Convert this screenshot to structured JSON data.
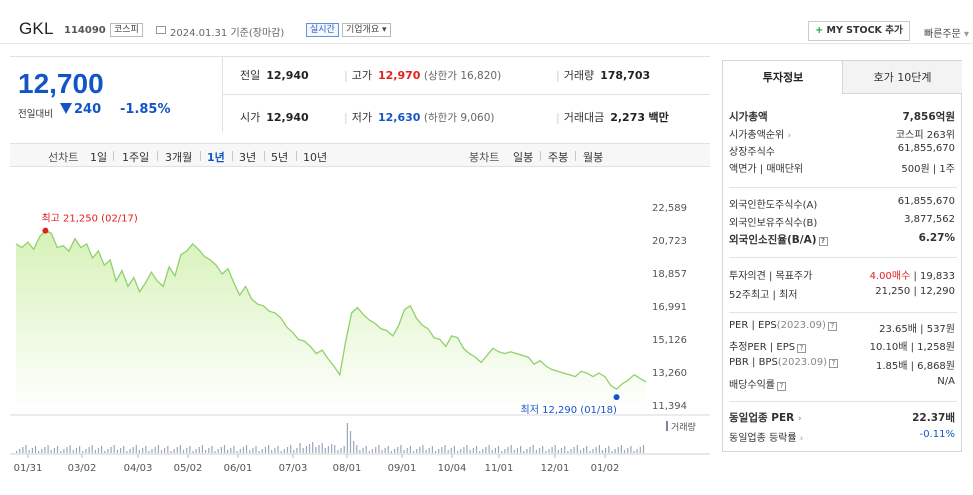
{
  "header": {
    "name": "GKL",
    "code": "114090",
    "market_badge": "코스피",
    "date": "2024.01.31",
    "date_suffix": "기준(장마감)",
    "realtime_badge": "실시간",
    "company_badge": "기업개요",
    "mystock_button": "MY STOCK 추가",
    "quick_order": "빠른주문"
  },
  "summary": {
    "price": "12,700",
    "change_label": "전일대비",
    "change_value": "240",
    "change_pct": "-1.85%",
    "prev_close_label": "전일",
    "prev_close": "12,940",
    "high_label": "고가",
    "high": "12,970",
    "upper_limit": "(상한가 16,820)",
    "volume_label": "거래량",
    "volume": "178,703",
    "open_label": "시가",
    "open": "12,940",
    "low_label": "저가",
    "low": "12,630",
    "lower_limit": "(하한가 9,060)",
    "amount_label": "거래대금",
    "amount": "2,273",
    "amount_unit": "백만"
  },
  "periods": {
    "line_label": "선차트",
    "line_items": [
      "1일",
      "1주일",
      "3개월",
      "1년",
      "3년",
      "5년",
      "10년"
    ],
    "selected": "1년",
    "candle_label": "봉차트",
    "candle_items": [
      "일봉",
      "주봉",
      "월봉"
    ]
  },
  "chart_data": {
    "type": "area",
    "x_ticks": [
      "01/31",
      "03/02",
      "04/03",
      "05/02",
      "06/01",
      "07/03",
      "08/01",
      "09/01",
      "10/04",
      "11/01",
      "12/01",
      "01/02"
    ],
    "y_ticks": [
      "22,589",
      "20,723",
      "18,857",
      "16,991",
      "15,126",
      "13,260",
      "11,394"
    ],
    "ylim": [
      11394,
      22589
    ],
    "max_label": "최고 21,250 (02/17)",
    "min_label": "최저 12,290 (01/18)",
    "volume_legend": "거래량",
    "series": [
      {
        "values": [
          20500,
          20300,
          20600,
          20200,
          20900,
          21250,
          21100,
          20300,
          20400,
          20100,
          20800,
          20300,
          20500,
          19700,
          20100,
          19300,
          19600,
          18400,
          19000,
          18100,
          18600,
          17800,
          18300,
          18900,
          18400,
          18100,
          19200,
          18700,
          19900,
          20100,
          20500,
          20200,
          19800,
          19600,
          19300,
          18800,
          19100,
          18300,
          17600,
          18100,
          17400,
          17100,
          17000,
          16700,
          16600,
          16300,
          15800,
          15500,
          15100,
          15000,
          14700,
          14300,
          14500,
          14000,
          13600,
          13100,
          15000,
          16600,
          16900,
          16500,
          16200,
          16000,
          15700,
          15600,
          15300,
          15900,
          16800,
          17000,
          16300,
          15900,
          15700,
          15200,
          15100,
          14700,
          15300,
          15200,
          14600,
          14300,
          14100,
          13800,
          14200,
          14600,
          14400,
          14300,
          14400,
          14300,
          14200,
          14100,
          13700,
          13900,
          13600,
          13400,
          13300,
          13200,
          13100,
          13000,
          13300,
          13200,
          13000,
          13200,
          13000,
          12500,
          12290,
          12600,
          12800,
          13100,
          12900,
          12700
        ]
      }
    ]
  },
  "right_panel": {
    "tab_active": "투자정보",
    "tab_other": "호가 10단계",
    "g1": [
      {
        "label": "시가총액",
        "value": "7,856억원"
      },
      {
        "label": "시가총액순위",
        "value": "코스피 263위"
      },
      {
        "label": "상장주식수",
        "value": "61,855,670"
      },
      {
        "label": "액면가 | 매매단위",
        "value": "500원 | 1주"
      }
    ],
    "g2": [
      {
        "label": "외국인한도주식수(A)",
        "value": "61,855,670"
      },
      {
        "label": "외국인보유주식수(B)",
        "value": "3,877,562"
      },
      {
        "label": "외국인소진율(B/A)",
        "value": "6.27%"
      }
    ],
    "g3": [
      {
        "label": "투자의견 | 목표주가",
        "value_red": "4.00매수",
        "value": " | 19,833"
      },
      {
        "label": "52주최고 | 최저",
        "value": "21,250 | 12,290"
      }
    ],
    "g4": [
      {
        "label": "PER | EPS",
        "sub": "(2023.09)",
        "value": "23.65배 | 537원"
      },
      {
        "label": "추정PER | EPS",
        "value": "10.10배 | 1,258원"
      },
      {
        "label": "PBR | BPS",
        "sub": "(2023.09)",
        "value": "1.85배 | 6,868원"
      },
      {
        "label": "배당수익률",
        "value": "N/A"
      }
    ],
    "g5": [
      {
        "label": "동일업종 PER",
        "value": "22.37배"
      },
      {
        "label": "동일업종 등락률",
        "value": "-0.11%"
      }
    ]
  },
  "colors": {
    "down": "#1455c6",
    "up": "#e0211e",
    "area_fill": "#d7f2b8",
    "area_line": "#8fd16a"
  }
}
